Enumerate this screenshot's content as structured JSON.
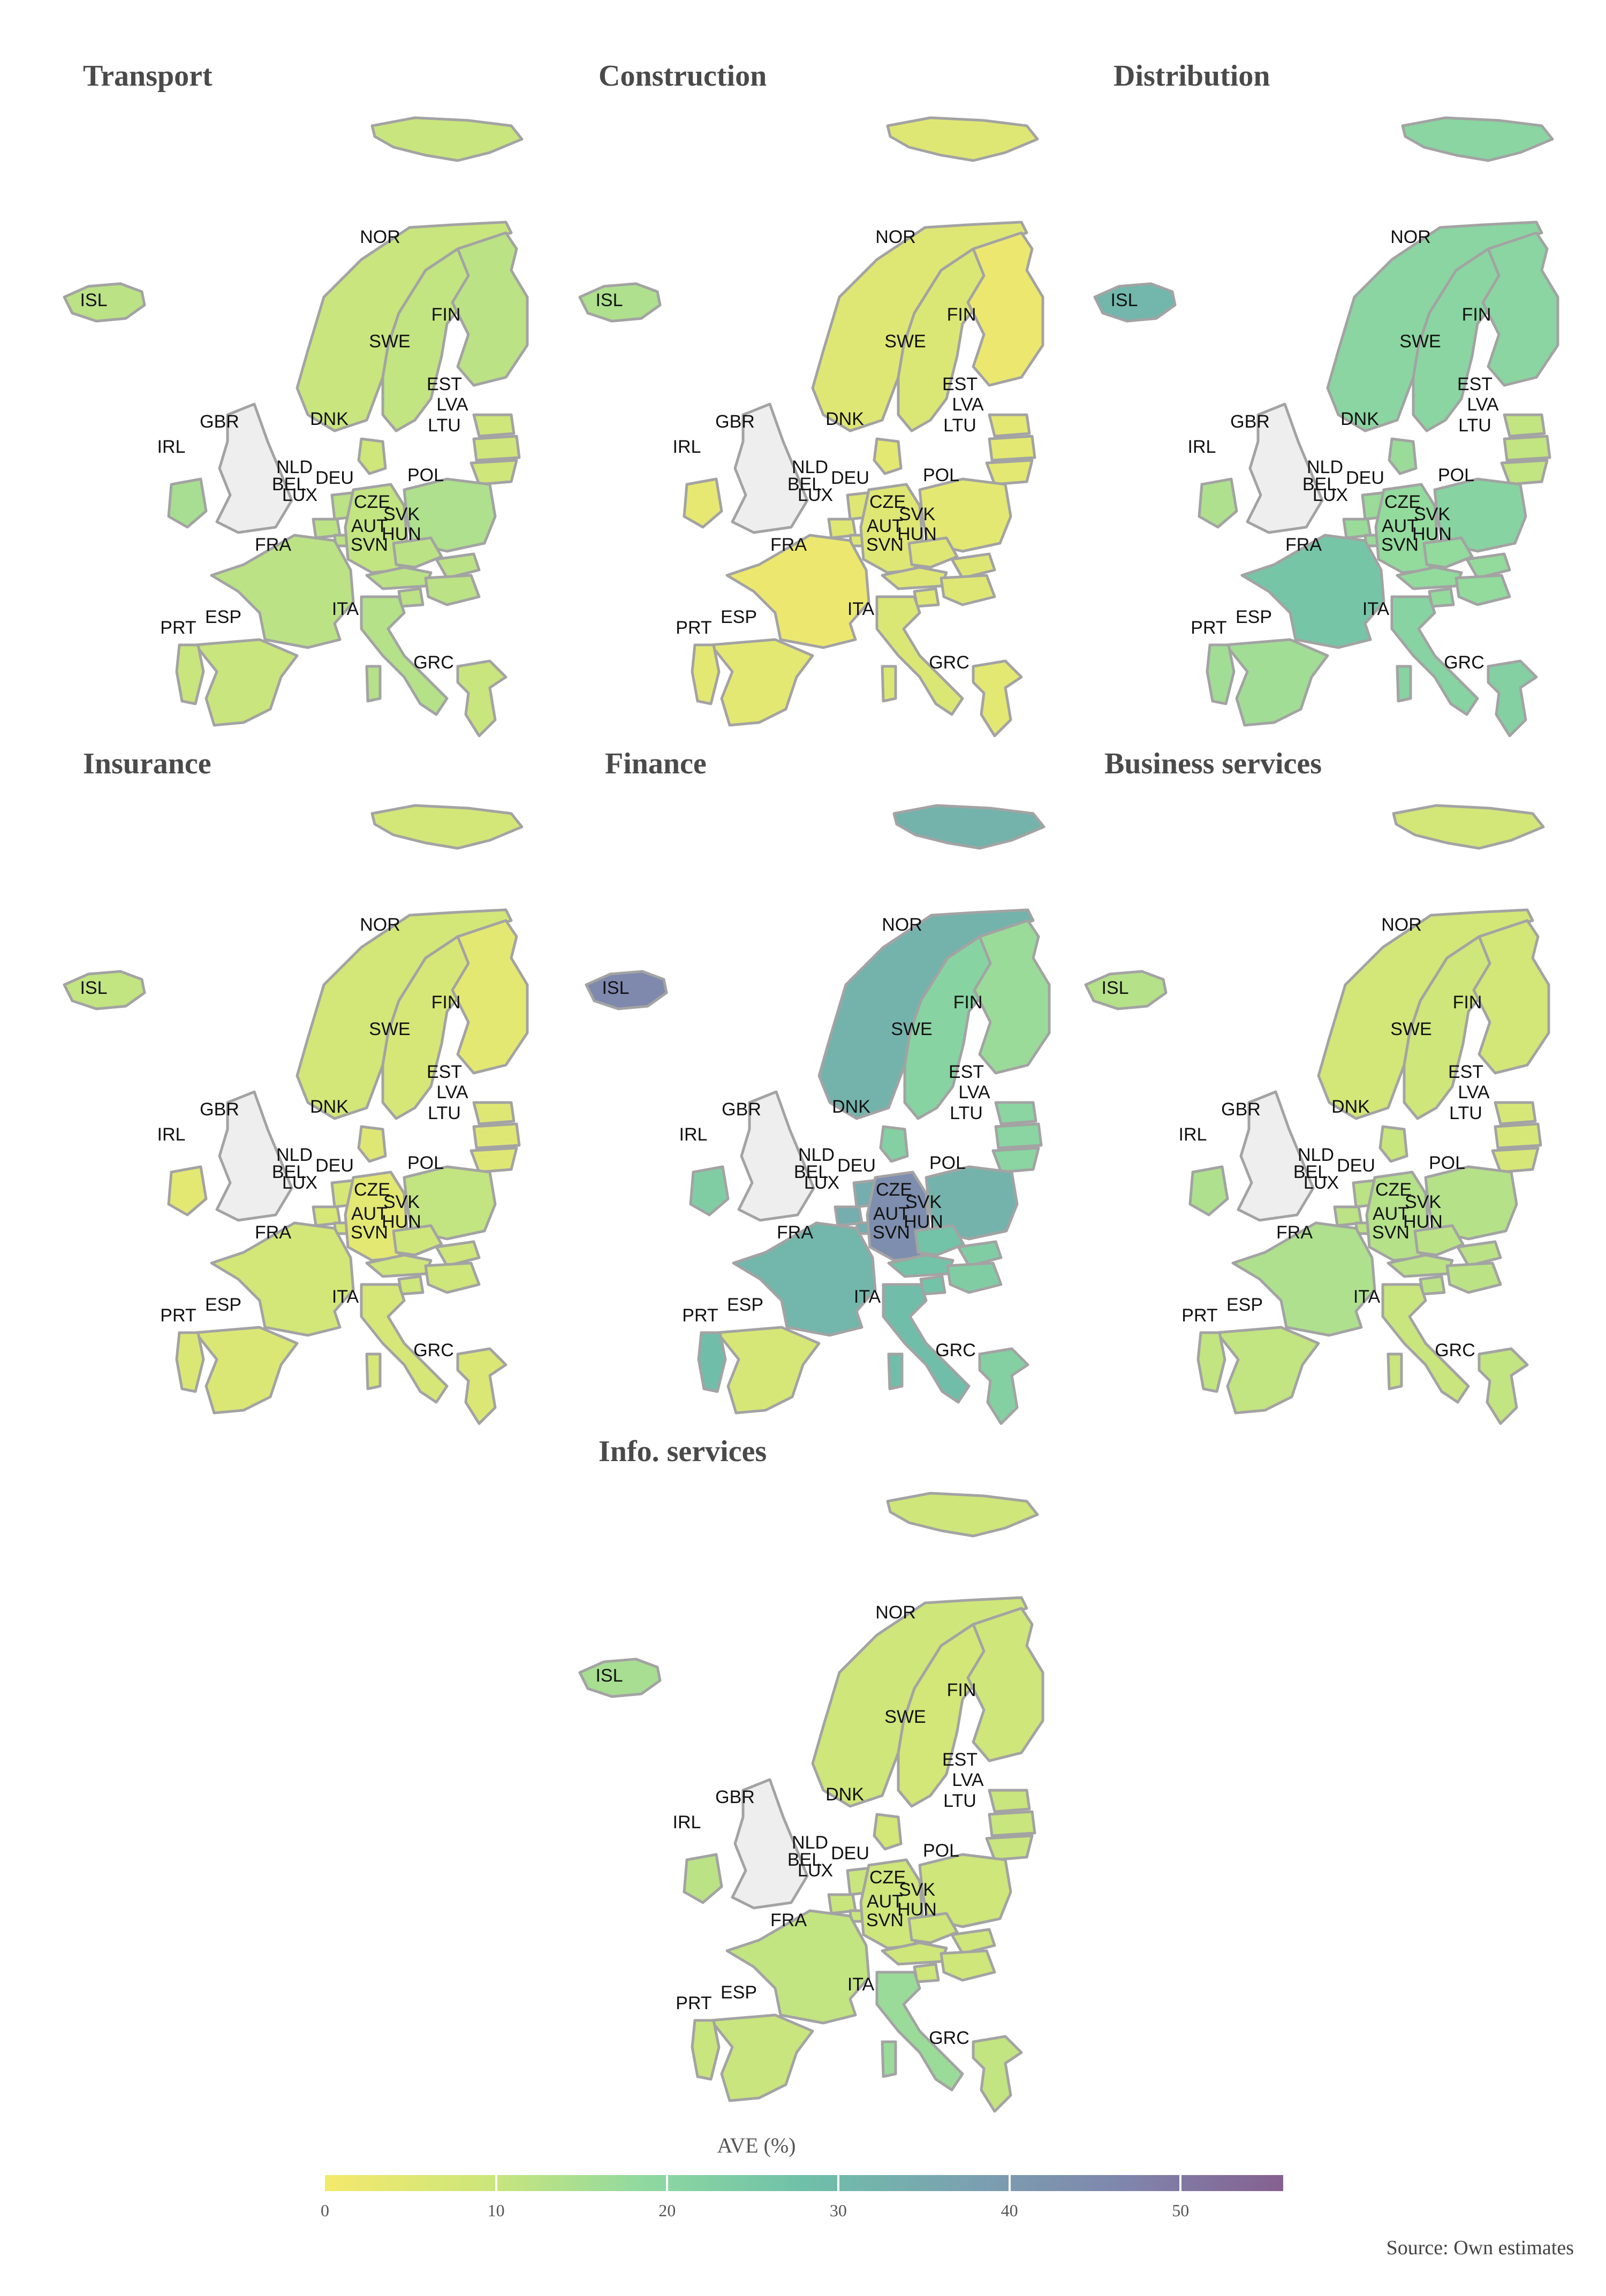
{
  "legend": {
    "title": "AVE (%)",
    "min": 0,
    "max": 56,
    "ticks": [
      0,
      10,
      20,
      30,
      40,
      50
    ],
    "colors": [
      "#f4e96c",
      "#cde67a",
      "#8fd9a0",
      "#6fc0a9",
      "#7aa2b0",
      "#7f86ad",
      "#856090"
    ]
  },
  "source": "Source: Own estimates",
  "no_data_color": "#eeeeee",
  "panels": [
    {
      "title": "Transport",
      "values": {
        "NOR": 10,
        "SWE": 11,
        "FIN": 12,
        "ISL": 12,
        "DNK": 9,
        "EST": 9,
        "LVA": 9,
        "LTU": 9,
        "IRL": 15,
        "NLD": 12,
        "BEL": 12,
        "LUX": 12,
        "DEU": 11,
        "POL": 14,
        "CZE": 12,
        "SVK": 12,
        "HUN": 12,
        "AUT": 12,
        "SVN": 12,
        "FRA": 12,
        "ITA": 13,
        "ESP": 10,
        "PRT": 10,
        "GRC": 10
      }
    },
    {
      "title": "Construction",
      "values": {
        "NOR": 5,
        "SWE": 6,
        "FIN": 2,
        "ISL": 14,
        "DNK": 4,
        "EST": 4,
        "LVA": 4,
        "LTU": 4,
        "IRL": 3,
        "NLD": 5,
        "BEL": 5,
        "LUX": 5,
        "DEU": 5,
        "POL": 4,
        "CZE": 5,
        "SVK": 5,
        "HUN": 5,
        "AUT": 5,
        "SVN": 5,
        "FRA": 2,
        "ITA": 6,
        "ESP": 4,
        "PRT": 4,
        "GRC": 4
      }
    },
    {
      "title": "Distribution",
      "values": {
        "NOR": 20,
        "SWE": 20,
        "FIN": 20,
        "ISL": 31,
        "DNK": 17,
        "EST": 11,
        "LVA": 11,
        "LTU": 11,
        "IRL": 14,
        "NLD": 17,
        "BEL": 17,
        "LUX": 17,
        "DEU": 18,
        "POL": 21,
        "CZE": 18,
        "SVK": 18,
        "HUN": 18,
        "AUT": 18,
        "SVN": 18,
        "FRA": 26,
        "ITA": 21,
        "ESP": 16,
        "PRT": 16,
        "GRC": 22
      }
    },
    {
      "title": "Insurance",
      "values": {
        "NOR": 8,
        "SWE": 7,
        "FIN": 4,
        "ISL": 11,
        "DNK": 5,
        "EST": 5,
        "LVA": 5,
        "LTU": 5,
        "IRL": 4,
        "NLD": 7,
        "BEL": 7,
        "LUX": 7,
        "DEU": 4,
        "POL": 11,
        "CZE": 9,
        "SVK": 9,
        "HUN": 9,
        "AUT": 9,
        "SVN": 9,
        "FRA": 8,
        "ITA": 7,
        "ESP": 6,
        "PRT": 6,
        "GRC": 6
      }
    },
    {
      "title": "Finance",
      "values": {
        "NOR": 32,
        "SWE": 21,
        "FIN": 17,
        "ISL": 46,
        "DNK": 22,
        "EST": 20,
        "LVA": 20,
        "LTU": 20,
        "IRL": 23,
        "NLD": 34,
        "BEL": 34,
        "LUX": 34,
        "DEU": 44,
        "POL": 32,
        "CZE": 27,
        "SVK": 23,
        "HUN": 23,
        "AUT": 27,
        "SVN": 27,
        "FRA": 31,
        "ITA": 29,
        "ESP": 7,
        "PRT": 29,
        "GRC": 22
      }
    },
    {
      "title": "Business services",
      "values": {
        "NOR": 8,
        "SWE": 9,
        "FIN": 8,
        "ISL": 13,
        "DNK": 10,
        "EST": 7,
        "LVA": 7,
        "LTU": 7,
        "IRL": 14,
        "NLD": 12,
        "BEL": 12,
        "LUX": 12,
        "DEU": 13,
        "POL": 13,
        "CZE": 12,
        "SVK": 12,
        "HUN": 12,
        "AUT": 12,
        "SVN": 12,
        "FRA": 14,
        "ITA": 10,
        "ESP": 11,
        "PRT": 11,
        "GRC": 11
      }
    },
    {
      "title": "Info. services",
      "values": {
        "NOR": 9,
        "SWE": 8,
        "FIN": 9,
        "ISL": 15,
        "DNK": 8,
        "EST": 10,
        "LVA": 10,
        "LTU": 10,
        "IRL": 12,
        "NLD": 10,
        "BEL": 10,
        "LUX": 10,
        "DEU": 9,
        "POL": 9,
        "CZE": 9,
        "SVK": 9,
        "HUN": 9,
        "AUT": 9,
        "SVN": 9,
        "FRA": 11,
        "ITA": 17,
        "ESP": 10,
        "PRT": 10,
        "GRC": 11
      }
    }
  ]
}
